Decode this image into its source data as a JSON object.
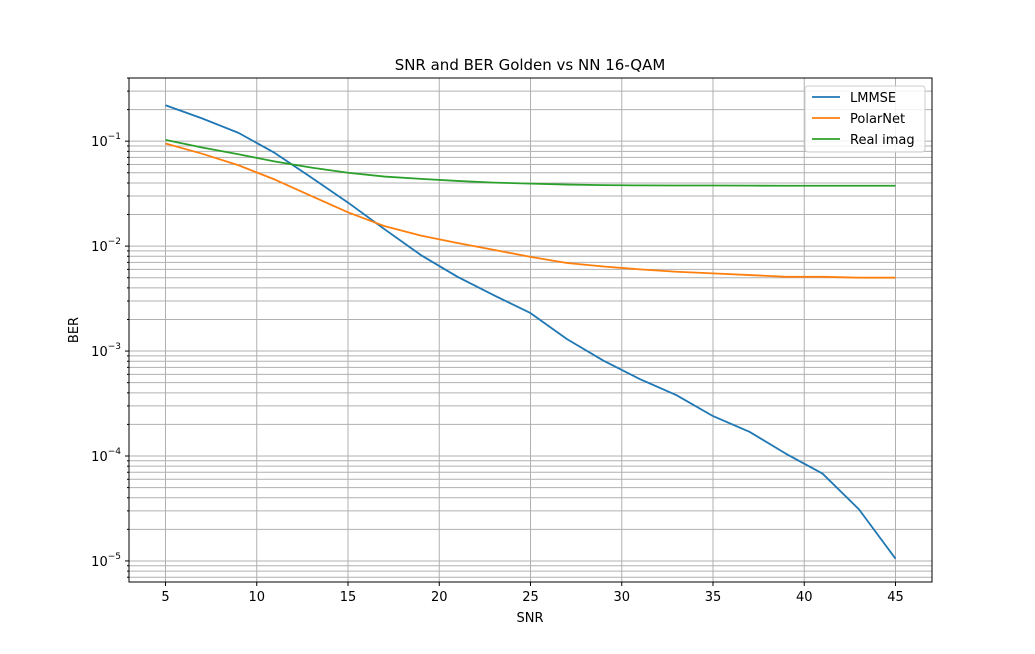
{
  "chart_data": {
    "type": "line",
    "title": "SNR and BER Golden vs NN 16-QAM",
    "xlabel": "SNR",
    "ylabel": "BER",
    "xlim": [
      3,
      47
    ],
    "ylim": [
      6.3e-06,
      0.4
    ],
    "yscale": "log",
    "grid": true,
    "legend_position": "top-right",
    "xticks": [
      5,
      10,
      15,
      20,
      25,
      30,
      35,
      40,
      45
    ],
    "yticks": [
      {
        "base": "10",
        "exp": "−5",
        "value": 1e-05
      },
      {
        "base": "10",
        "exp": "−4",
        "value": 0.0001
      },
      {
        "base": "10",
        "exp": "−3",
        "value": 0.001
      },
      {
        "base": "10",
        "exp": "−2",
        "value": 0.01
      },
      {
        "base": "10",
        "exp": "−1",
        "value": 0.1
      }
    ],
    "x": [
      5,
      7,
      9,
      11,
      13,
      15,
      17,
      19,
      21,
      23,
      25,
      27,
      29,
      31,
      33,
      35,
      37,
      39,
      41,
      43,
      45
    ],
    "series": [
      {
        "name": "LMMSE",
        "color": "#1f77b4",
        "values": [
          0.22,
          0.165,
          0.12,
          0.077,
          0.045,
          0.026,
          0.0145,
          0.0082,
          0.0051,
          0.0034,
          0.0023,
          0.0013,
          0.00081,
          0.00054,
          0.00038,
          0.00024,
          0.00017,
          0.000105,
          6.8e-05,
          3.1e-05,
          1.05e-05
        ]
      },
      {
        "name": "PolarNet",
        "color": "#ff7f0e",
        "values": [
          0.095,
          0.076,
          0.059,
          0.043,
          0.03,
          0.021,
          0.0155,
          0.0126,
          0.0107,
          0.0092,
          0.0079,
          0.0069,
          0.0064,
          0.006,
          0.0057,
          0.0055,
          0.0053,
          0.0051,
          0.0051,
          0.005,
          0.005
        ]
      },
      {
        "name": "Real imag",
        "color": "#2ca02c",
        "values": [
          0.103,
          0.087,
          0.075,
          0.064,
          0.056,
          0.05,
          0.046,
          0.0437,
          0.0418,
          0.0403,
          0.0394,
          0.0386,
          0.0381,
          0.0379,
          0.0378,
          0.0378,
          0.0377,
          0.0376,
          0.0376,
          0.0376,
          0.0376
        ]
      }
    ]
  }
}
